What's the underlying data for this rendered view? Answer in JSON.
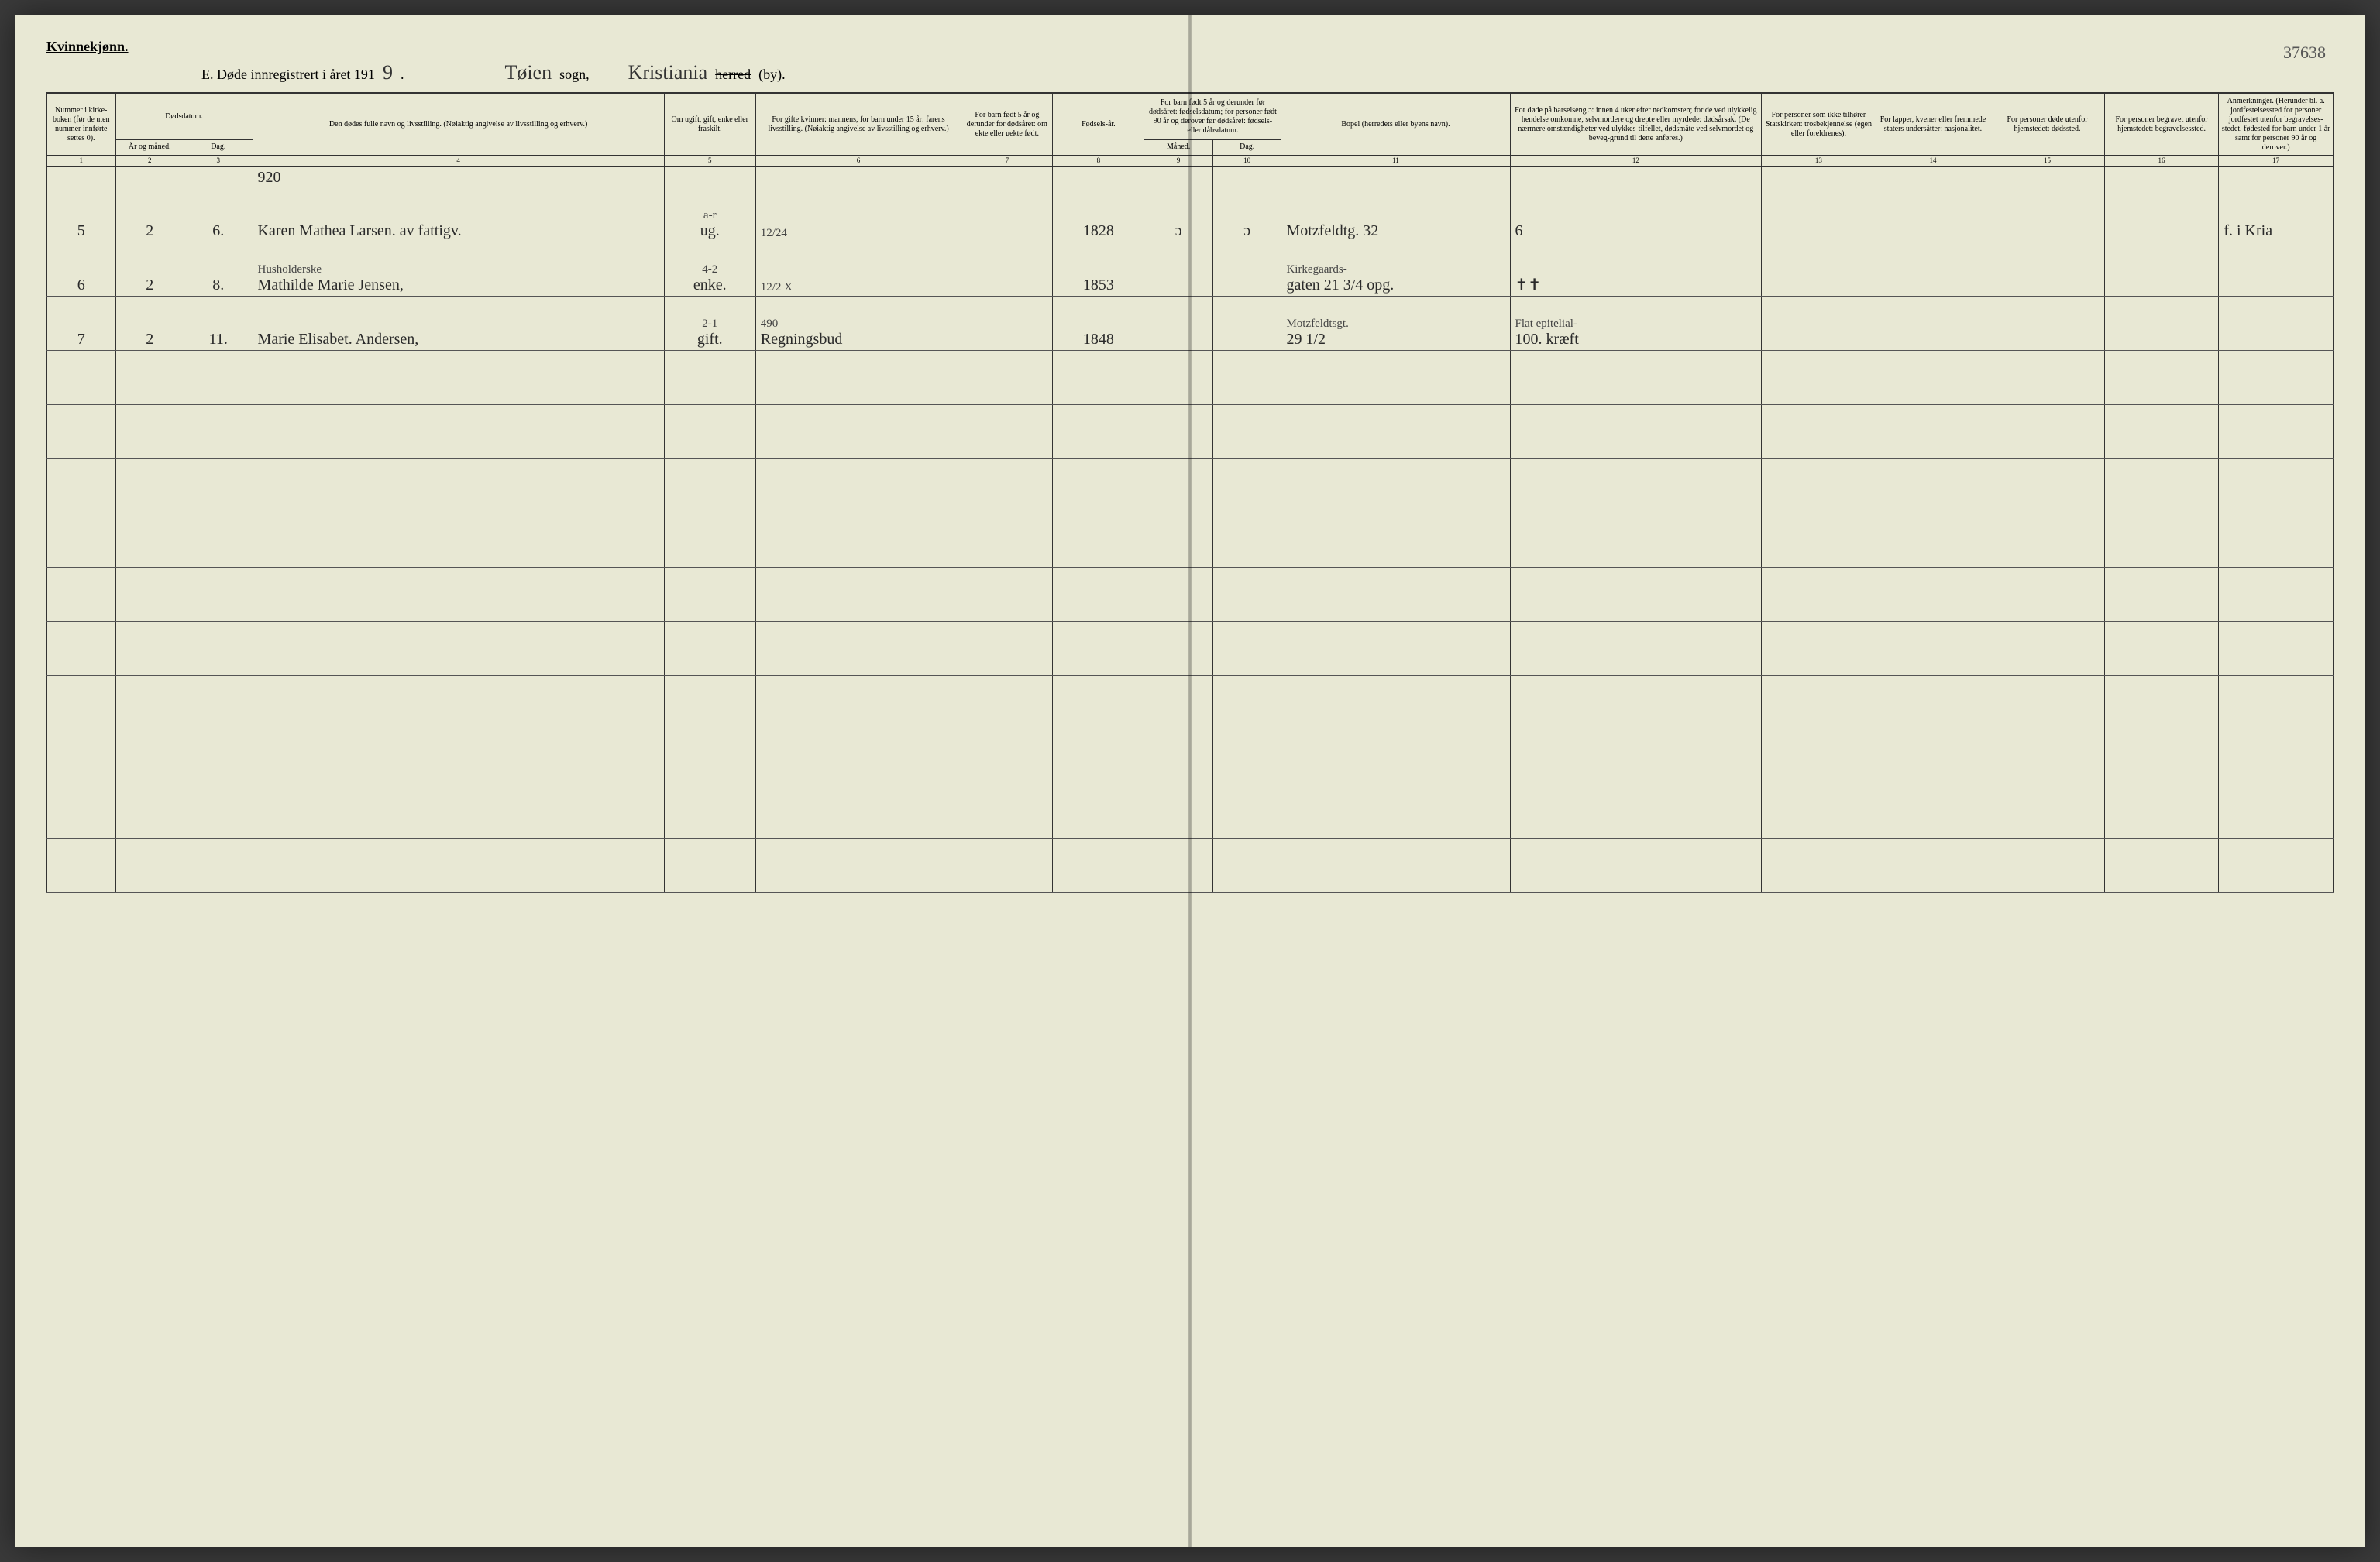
{
  "header": {
    "gender_label": "Kvinnekjønn.",
    "title_prefix": "E. Døde innregistrert i året 191",
    "year_digit": "9",
    "title_period": ".",
    "parish_hand": "Tøien",
    "sogn_label": "sogn,",
    "city_hand": "Kristiania",
    "herred_strike": "herred",
    "by_label": "(by).",
    "page_number": "37638"
  },
  "columns": {
    "c1": "Nummer i kirke-boken (før de uten nummer innførte settes 0).",
    "c2": "Dødsdatum.",
    "c2a": "År og måned.",
    "c2b": "Dag.",
    "c4": "Den dødes fulle navn og livsstilling. (Nøiaktig angivelse av livsstilling og erhverv.)",
    "c5": "Om ugift, gift, enke eller fraskilt.",
    "c6": "For gifte kvinner: mannens, for barn under 15 år: farens livsstilling. (Nøiaktig angivelse av livsstilling og erhverv.)",
    "c7": "For barn født 5 år og derunder for dødsåret: om ekte eller uekte født.",
    "c8": "Fødsels-år.",
    "c9": "For barn født 5 år og derunder før dødsåret: fødselsdatum; for personer født 90 år og derover før dødsåret: fødsels- eller dåbsdatum.",
    "c9a": "Måned.",
    "c9b": "Dag.",
    "c11": "Bopel (herredets eller byens navn).",
    "c12": "For døde på barselseng ɔ: innen 4 uker efter nedkomsten; for de ved ulykkelig hendelse omkomne, selvmordere og drepte eller myrdede: dødsårsak. (De nærmere omstændigheter ved ulykkes-tilfellet, dødsmåte ved selvmordet og beveg-grund til dette anføres.)",
    "c13": "For personer som ikke tilhører Statskirken: trosbekjennelse (egen eller foreldrenes).",
    "c14": "For lapper, kvener eller fremmede staters undersåtter: nasjonalitet.",
    "c15": "For personer døde utenfor hjemstedet: dødssted.",
    "c16": "For personer begravet utenfor hjemstedet: begravelsessted.",
    "c17": "Anmerkninger. (Herunder bl. a. jordfestelsessted for personer jordfestet utenfor begravelses-stedet, fødested for barn under 1 år samt for personer 90 år og derover.)"
  },
  "colnums": [
    "1",
    "2",
    "3",
    "4",
    "5",
    "6",
    "7",
    "8",
    "9",
    "10",
    "11",
    "12",
    "13",
    "14",
    "15",
    "16",
    "17"
  ],
  "preline": {
    "c4": "920"
  },
  "rows": [
    {
      "check": "✓",
      "c1": "5",
      "c2a": "2",
      "c2b": "6.",
      "c4": "Karen Mathea Larsen. av fattigv.",
      "c5_top": "a-r",
      "c5": "ug.",
      "c6_top": "12/24",
      "c6": "",
      "c8": "1828",
      "c9a": "ɔ",
      "c9b": "ɔ",
      "c11": "Motzfeldtg. 32",
      "c12": "6",
      "c17": "f. i Kria"
    },
    {
      "check": "✓",
      "c1": "6",
      "c2a": "2",
      "c2b": "8.",
      "c4_top": "Husholderske",
      "c4": "Mathilde Marie Jensen,",
      "c5_top": "4-2",
      "c5": "enke.",
      "c6_top": "12/2 X",
      "c6": "",
      "c8": "1853",
      "c11_top": "Kirkegaards-",
      "c11": "gaten 21 3/4 opg.",
      "c12": "✝✝"
    },
    {
      "check": "✓",
      "c1": "7",
      "c2a": "2",
      "c2b": "11.",
      "c4": "Marie Elisabet. Andersen,",
      "c5_top": "2-1",
      "c5": "gift.",
      "c6_top": "490",
      "c6": "Regningsbud",
      "c8": "1848",
      "c11_top": "Motzfeldtsgt.",
      "c11": "29 1/2",
      "c12_top": "Flat epitelial-",
      "c12": "100. kræft"
    }
  ],
  "empty_rows": 10,
  "style": {
    "paper_color": "#e8e8d4",
    "ink_color": "#2a2a2a",
    "rule_color": "#333333",
    "table_widths_pct": [
      3,
      3,
      3,
      18,
      4,
      9,
      4,
      4,
      3,
      3,
      10,
      11,
      5,
      5,
      5,
      5,
      5
    ]
  }
}
